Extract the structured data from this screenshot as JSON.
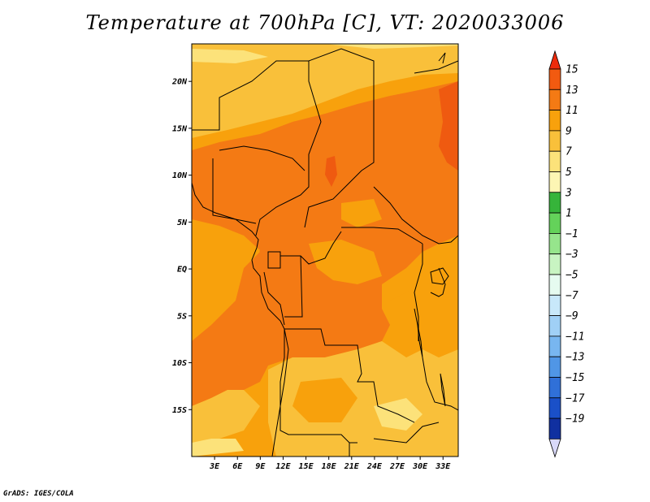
{
  "title": "Temperature at 700hPa [C], VT: 2020033006",
  "footer": "GrADS: IGES/COLA",
  "map": {
    "lon_range": [
      0,
      35
    ],
    "lat_range": [
      -20,
      24
    ],
    "lat_ticks": [
      {
        "value": 20,
        "label": "20N"
      },
      {
        "value": 15,
        "label": "15N"
      },
      {
        "value": 10,
        "label": "10N"
      },
      {
        "value": 5,
        "label": "5N"
      },
      {
        "value": 0,
        "label": "EQ"
      },
      {
        "value": -5,
        "label": "5S"
      },
      {
        "value": -10,
        "label": "10S"
      },
      {
        "value": -15,
        "label": "15S"
      }
    ],
    "lon_ticks": [
      {
        "value": 3,
        "label": "3E"
      },
      {
        "value": 6,
        "label": "6E"
      },
      {
        "value": 9,
        "label": "9E"
      },
      {
        "value": 12,
        "label": "12E"
      },
      {
        "value": 15,
        "label": "15E"
      },
      {
        "value": 18,
        "label": "18E"
      },
      {
        "value": 21,
        "label": "21E"
      },
      {
        "value": 24,
        "label": "24E"
      },
      {
        "value": 27,
        "label": "27E"
      },
      {
        "value": 30,
        "label": "30E"
      },
      {
        "value": 33,
        "label": "33E"
      }
    ],
    "colors": {
      "c5_7": "#fce27a",
      "c7_9": "#f9c03a",
      "c9_11": "#f8a10c",
      "c11_13": "#f47a14",
      "c13_15": "#ef5a10",
      "border": "#000000"
    }
  },
  "colorbar": {
    "labels": [
      "15",
      "13",
      "11",
      "9",
      "7",
      "5",
      "3",
      "1",
      "−1",
      "−3",
      "−5",
      "−7",
      "−9",
      "−11",
      "−13",
      "−15",
      "−17",
      "−19"
    ],
    "colors": [
      "#ee2c0c",
      "#f25a10",
      "#f47a14",
      "#f8a10c",
      "#f9c03a",
      "#fce27a",
      "#fdf6b4",
      "#36b43a",
      "#64d25a",
      "#96e58c",
      "#c8f4c2",
      "#e6fbf0",
      "#c8e8fa",
      "#a0d0f6",
      "#78b6f0",
      "#5096e6",
      "#3070d8",
      "#1a50c8",
      "#1030a0",
      "#0a1478"
    ],
    "top_arrow_color": "#ee2c0c",
    "bottom_arrow_color": "#d8d8f8"
  }
}
